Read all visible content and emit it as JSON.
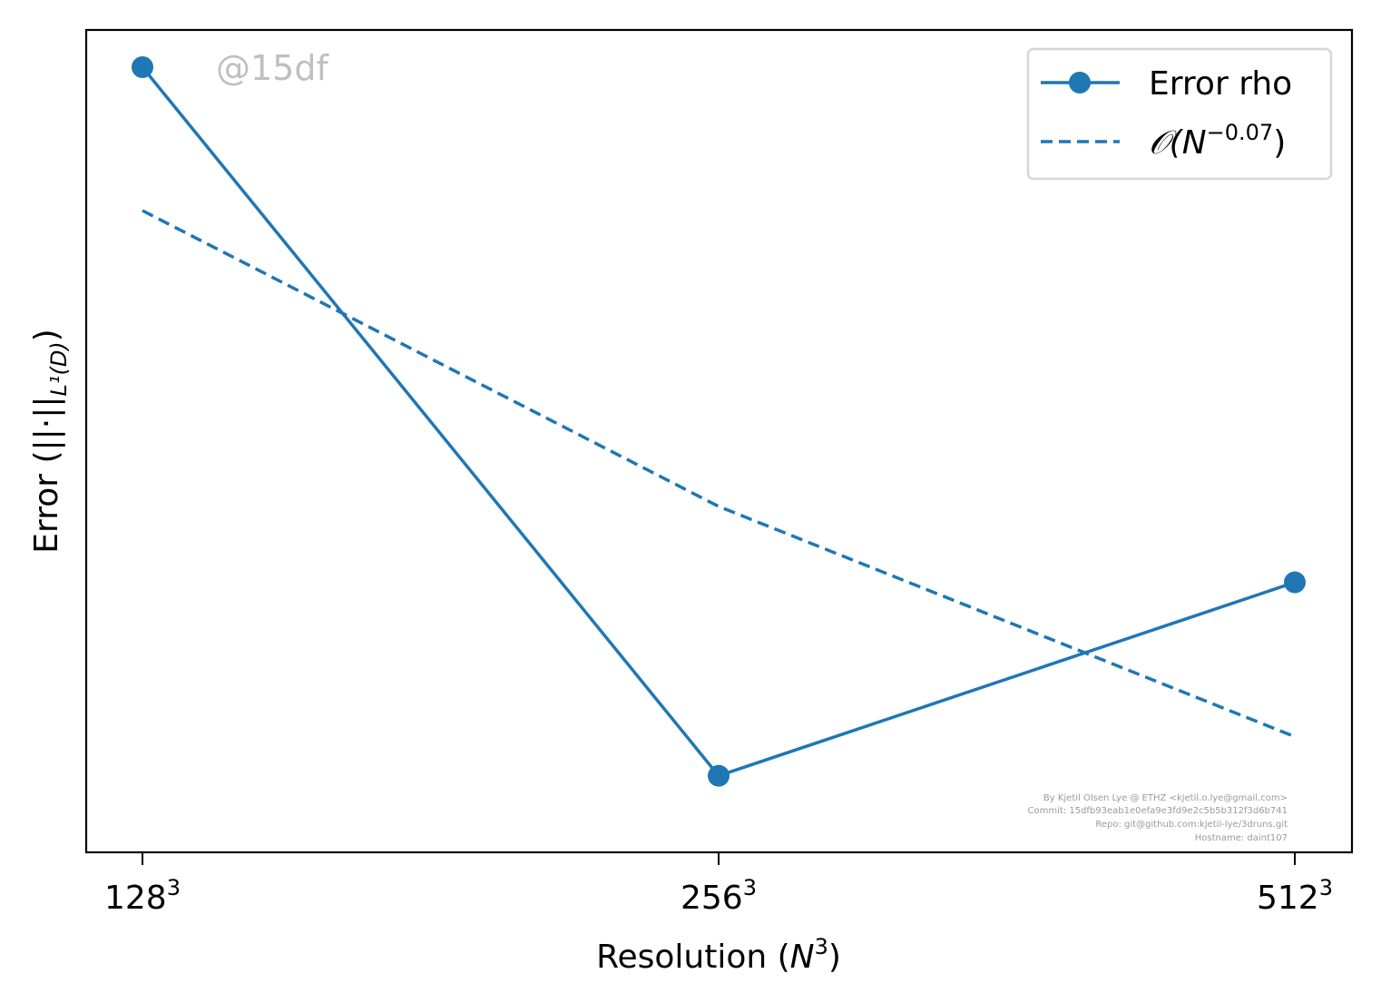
{
  "chart_data": {
    "type": "line",
    "x_scale": "log2",
    "y_scale": "log",
    "x": [
      128,
      256,
      512
    ],
    "x_tick_labels": [
      {
        "base": "128",
        "exp": "3"
      },
      {
        "base": "256",
        "exp": "3"
      },
      {
        "base": "512",
        "exp": "3"
      }
    ],
    "xlabel": {
      "prefix": "Resolution (",
      "var": "N",
      "exp": "3",
      "suffix": ")"
    },
    "ylabel": {
      "main": "Error (||·||",
      "sub": "L¹(D)",
      "suffix": ")"
    },
    "series": [
      {
        "name": "Error rho",
        "values": [
          1.0,
          0.905,
          0.93
        ],
        "style": "solid",
        "marker": "circle",
        "color": "#1f77b4"
      },
      {
        "name": "𝒪(N−0.07)",
        "legend": {
          "prefix": "𝒪(",
          "var": "N",
          "exp": "−0.07",
          "suffix": ")"
        },
        "values": [
          0.98,
          0.94,
          0.91
        ],
        "style": "dashed",
        "color": "#1f77b4"
      }
    ],
    "ylim": [
      0.9,
      1.0
    ],
    "grid": false,
    "legend_position": "top-right",
    "watermark": "@15df",
    "credits": [
      "By Kjetil Olsen Lye @ ETHZ <kjetil.o.lye@gmail.com>",
      "Commit: 15dfb93eab1e0efa9e3fd9e2c5b5b312f3d6b741",
      "Repo: git@github.com:kjetil-lye/3druns.git",
      "Hostname: daint107"
    ]
  }
}
